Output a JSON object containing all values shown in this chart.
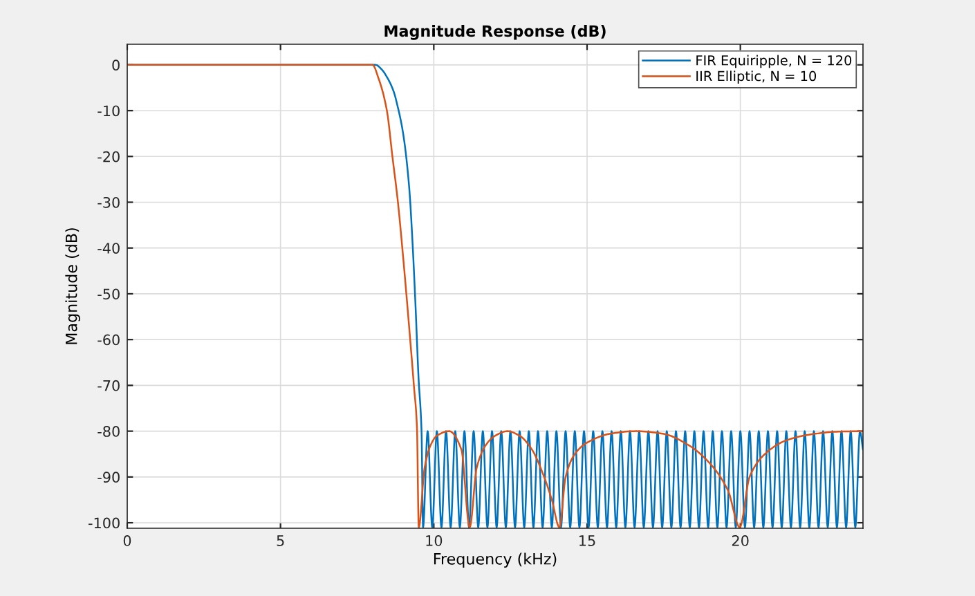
{
  "chart_data": {
    "type": "line",
    "title": "Magnitude Response (dB)",
    "xlabel": "Frequency (kHz)",
    "ylabel": "Magnitude (dB)",
    "xlim": [
      0,
      24
    ],
    "xticks": [
      0,
      5,
      10,
      15,
      20
    ],
    "ylim": [
      -101.2,
      4.5
    ],
    "yticks": [
      -100,
      -90,
      -80,
      -70,
      -60,
      -50,
      -40,
      -30,
      -20,
      -10,
      0
    ],
    "grid": true,
    "legend": "top right",
    "marker": "none",
    "line_style": "solid",
    "series": [
      {
        "name": "FIR Equiripple, N = 120",
        "color": "#0072bd",
        "x": [
          0,
          7.5,
          8.1,
          8.3,
          8.5,
          8.7,
          8.8,
          9.0,
          9.2,
          9.3,
          9.4,
          9.5,
          9.6,
          9.65,
          9.8,
          9.95,
          10.1,
          10.25,
          10.4,
          10.55,
          10.7,
          10.85,
          11.0,
          11.15,
          11.3,
          11.45,
          11.6,
          11.75,
          11.9,
          12.05,
          12.2,
          12.35,
          12.5,
          12.65,
          12.8,
          12.95,
          13.1,
          13.25,
          13.4,
          13.55,
          13.7,
          13.85,
          14.0,
          14.15,
          14.3,
          14.45,
          14.6,
          14.75,
          14.9,
          15.05,
          15.2,
          15.35,
          15.5,
          15.65,
          15.8,
          15.95,
          16.1,
          16.25,
          16.4,
          16.55,
          16.7,
          16.85,
          17.0,
          17.15,
          17.3,
          17.45,
          17.6,
          17.75,
          17.9,
          18.05,
          18.2,
          18.35,
          18.5,
          18.65,
          18.8,
          18.95,
          19.1,
          19.25,
          19.4,
          19.55,
          19.7,
          19.85,
          20.0,
          20.15,
          20.3,
          20.45,
          20.6,
          20.75,
          20.9,
          21.05,
          21.2,
          21.35,
          21.5,
          21.65,
          21.8,
          21.95,
          22.1,
          22.25,
          22.4,
          22.55,
          22.7,
          22.85,
          23.0,
          23.15,
          23.3,
          23.45,
          23.6,
          23.75,
          23.9,
          24.0
        ],
        "values": [
          0,
          0,
          0,
          -1,
          -3,
          -6,
          -8.5,
          -15,
          -27,
          -38,
          -52,
          -68,
          -80,
          -101,
          -80,
          -101,
          -80,
          -101,
          -80,
          -101,
          -80,
          -101,
          -80,
          -101,
          -80,
          -101,
          -80,
          -101,
          -80,
          -101,
          -80,
          -101,
          -80,
          -101,
          -80,
          -101,
          -80,
          -101,
          -80,
          -101,
          -80,
          -101,
          -80,
          -101,
          -80,
          -101,
          -80,
          -101,
          -80,
          -101,
          -80,
          -101,
          -80,
          -101,
          -80,
          -101,
          -80,
          -101,
          -80,
          -101,
          -80,
          -101,
          -80,
          -101,
          -80,
          -101,
          -80,
          -101,
          -80,
          -101,
          -80,
          -101,
          -80,
          -101,
          -80,
          -101,
          -80,
          -101,
          -80,
          -101,
          -80,
          -101,
          -80,
          -101,
          -80,
          -101,
          -80,
          -101,
          -80,
          -101,
          -80,
          -101,
          -80,
          -101,
          -80,
          -101,
          -80,
          -101,
          -80,
          -101,
          -80,
          -101,
          -80,
          -101,
          -80,
          -101,
          -80,
          -101,
          -80,
          -84
        ]
      },
      {
        "name": "IIR Elliptic, N = 10",
        "color": "#d95319",
        "x": [
          0,
          8.0,
          8.2,
          8.47,
          8.65,
          8.83,
          9.0,
          9.23,
          9.35,
          9.45,
          9.51,
          9.7,
          9.9,
          10.1,
          10.5,
          10.9,
          11.17,
          11.4,
          11.7,
          12.0,
          12.4,
          12.8,
          13.2,
          13.6,
          13.85,
          14.1,
          14.3,
          14.6,
          15.0,
          15.8,
          16.6,
          17.5,
          18.3,
          19.0,
          19.6,
          19.98,
          20.3,
          20.8,
          21.5,
          22.3,
          23.2,
          24.0
        ],
        "values": [
          0,
          0,
          -3,
          -10,
          -20,
          -30,
          -42,
          -60,
          -70,
          -79,
          -101,
          -88,
          -83,
          -81,
          -80,
          -84,
          -101,
          -88,
          -83,
          -81,
          -80,
          -81,
          -84,
          -90,
          -95,
          -101,
          -90,
          -85,
          -82.5,
          -80.5,
          -80,
          -80.6,
          -83,
          -87,
          -93,
          -101,
          -90,
          -85,
          -82,
          -80.7,
          -80.1,
          -80
        ]
      }
    ]
  }
}
